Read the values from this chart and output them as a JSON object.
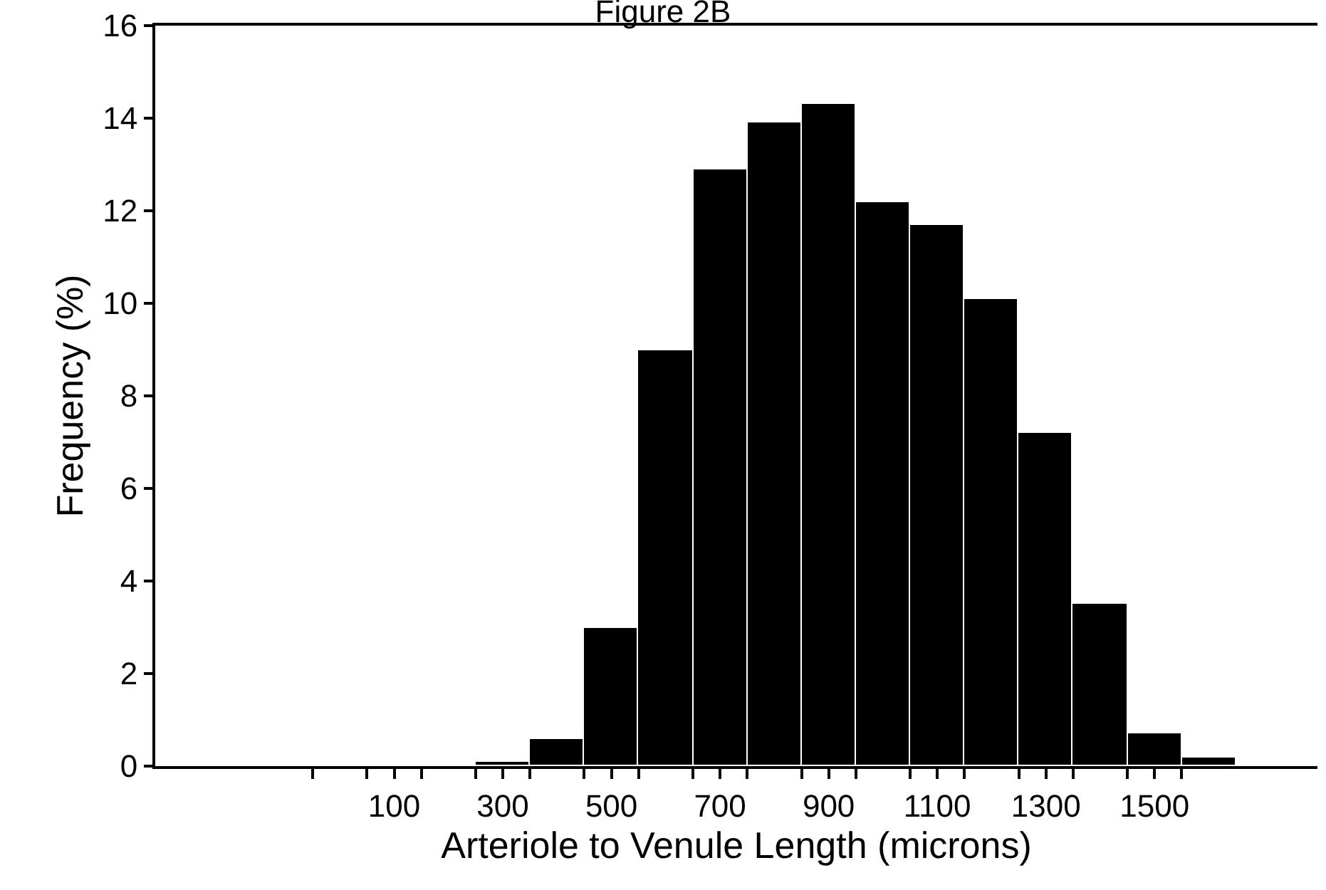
{
  "chart_data": {
    "type": "histogram",
    "title": "Figure 2B",
    "xlabel": "Arteriole to Venule Length (microns)",
    "ylabel": "Frequency (%)",
    "bins": [
      250,
      350,
      450,
      550,
      650,
      750,
      850,
      950,
      1050,
      1150,
      1250,
      1350,
      1450,
      1550,
      1650
    ],
    "values": [
      0.1,
      0.6,
      3.0,
      9.0,
      12.9,
      13.9,
      14.3,
      12.2,
      11.7,
      10.1,
      7.2,
      3.5,
      0.7,
      0.2
    ],
    "color": "#000000",
    "xlim": [
      -340,
      1800
    ],
    "xticks": [
      {
        "value": -50,
        "label": null
      },
      {
        "value": 50,
        "label": null
      },
      100,
      {
        "value": 150,
        "label": null
      },
      {
        "value": 250,
        "label": null
      },
      300,
      {
        "value": 350,
        "label": null
      },
      {
        "value": 450,
        "label": null
      },
      500,
      {
        "value": 550,
        "label": null
      },
      {
        "value": 650,
        "label": null
      },
      700,
      {
        "value": 750,
        "label": null
      },
      {
        "value": 850,
        "label": null
      },
      900,
      {
        "value": 950,
        "label": null
      },
      {
        "value": 1050,
        "label": null
      },
      1100,
      {
        "value": 1150,
        "label": null
      },
      {
        "value": 1250,
        "label": null
      },
      1300,
      {
        "value": 1350,
        "label": null
      },
      {
        "value": 1450,
        "label": null
      },
      1500,
      {
        "value": 1550,
        "label": null
      }
    ],
    "ylim": [
      0,
      16
    ],
    "yticks": [
      0,
      2,
      4,
      6,
      8,
      10,
      12,
      14,
      16
    ]
  }
}
